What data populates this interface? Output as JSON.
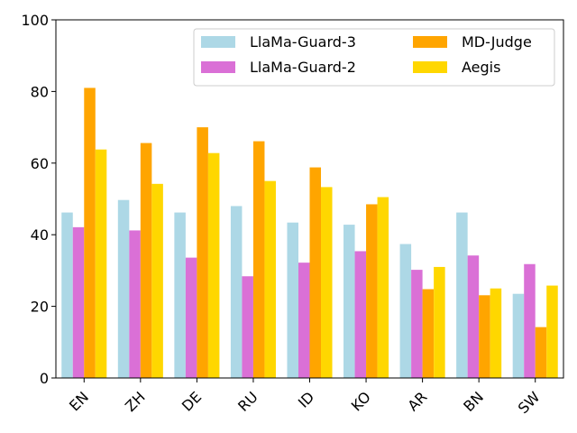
{
  "chart_data": {
    "type": "bar",
    "title": "",
    "xlabel": "",
    "ylabel": "",
    "ylim": [
      0,
      100
    ],
    "yticks": [
      "0",
      "20",
      "40",
      "60",
      "80",
      "100"
    ],
    "categories": [
      "EN",
      "ZH",
      "DE",
      "RU",
      "ID",
      "KO",
      "AR",
      "BN",
      "SW"
    ],
    "legend_position": "top-right",
    "series": [
      {
        "name": "LlaMa-Guard-3",
        "color": "#add8e6",
        "values": [
          46.2,
          49.7,
          46.2,
          48.0,
          43.4,
          42.8,
          37.4,
          46.2,
          23.5
        ]
      },
      {
        "name": "LlaMa-Guard-2",
        "color": "#da70d6",
        "values": [
          42.1,
          41.2,
          33.6,
          28.4,
          32.2,
          35.4,
          30.2,
          34.2,
          31.8
        ]
      },
      {
        "name": "MD-Judge",
        "color": "#ffa500",
        "values": [
          81.0,
          65.6,
          70.0,
          66.1,
          58.8,
          48.5,
          24.8,
          23.1,
          14.2
        ]
      },
      {
        "name": "Aegis",
        "color": "#ffd700",
        "values": [
          63.8,
          54.2,
          62.8,
          55.0,
          53.3,
          50.5,
          31.0,
          25.0,
          25.8
        ]
      }
    ]
  }
}
